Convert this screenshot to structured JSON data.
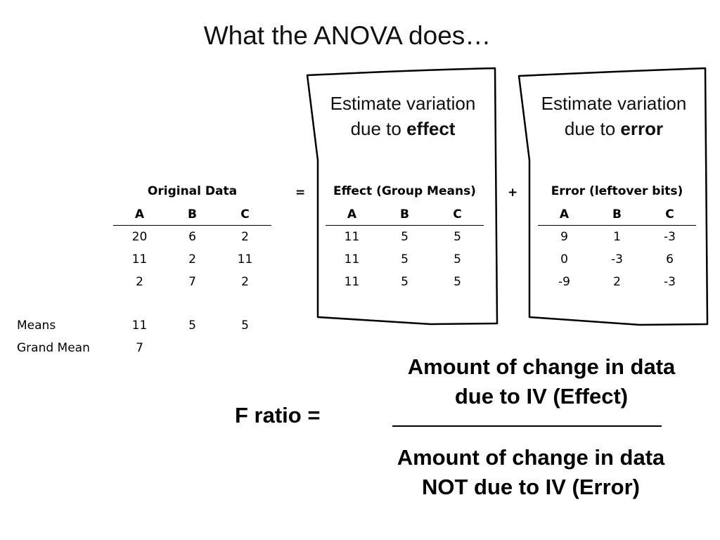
{
  "title": "What the ANOVA does…",
  "effect_box": {
    "line1": "Estimate variation",
    "line2_prefix": "due to ",
    "line2_bold": "effect"
  },
  "error_box": {
    "line1": "Estimate variation",
    "line2_prefix": "due to ",
    "line2_bold": "error"
  },
  "operators": {
    "equals": "=",
    "plus": "+"
  },
  "original_table": {
    "title": "Original Data",
    "columns": [
      "A",
      "B",
      "C"
    ],
    "rows": [
      [
        "20",
        "6",
        "2"
      ],
      [
        "11",
        "2",
        "11"
      ],
      [
        "2",
        "7",
        "2"
      ]
    ]
  },
  "effect_table": {
    "title": "Effect (Group Means)",
    "columns": [
      "A",
      "B",
      "C"
    ],
    "rows": [
      [
        "11",
        "5",
        "5"
      ],
      [
        "11",
        "5",
        "5"
      ],
      [
        "11",
        "5",
        "5"
      ]
    ]
  },
  "error_table": {
    "title": "Error (leftover bits)",
    "columns": [
      "A",
      "B",
      "C"
    ],
    "rows": [
      [
        "9",
        "1",
        "-3"
      ],
      [
        "0",
        "-3",
        "6"
      ],
      [
        "-9",
        "2",
        "-3"
      ]
    ]
  },
  "means": {
    "label": "Means",
    "values": [
      "11",
      "5",
      "5"
    ]
  },
  "grand_mean": {
    "label": "Grand Mean",
    "value": "7"
  },
  "f_ratio": {
    "label": "F ratio =",
    "numerator_line1": "Amount of change in data",
    "numerator_line2": "due to IV (Effect)",
    "denominator_line1": "Amount of change in data",
    "denominator_line2": "NOT due to IV (Error)"
  }
}
